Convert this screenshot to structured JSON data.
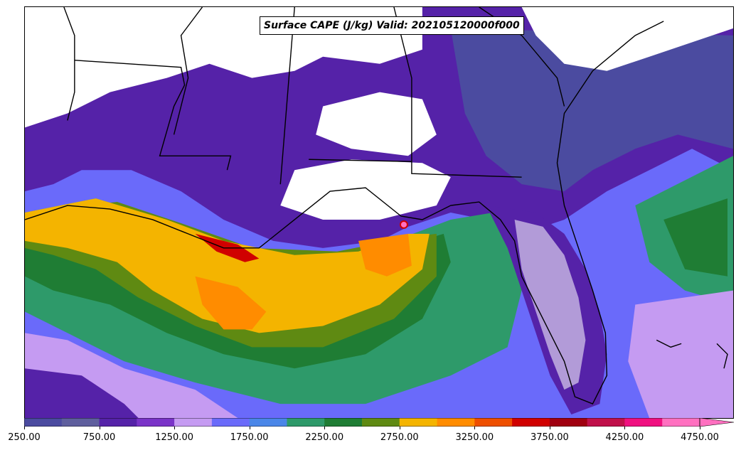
{
  "title": "Surface CAPE (J/kg) Valid: 202105120000f000",
  "colorbar": {
    "tick_labels": [
      "250.00",
      "750.00",
      "1250.00",
      "1750.00",
      "2250.00",
      "2750.00",
      "3250.00",
      "3750.00",
      "4250.00",
      "4750.00"
    ],
    "colors": [
      "#4b4ba0",
      "#5f5f9e",
      "#5522a8",
      "#7a33c8",
      "#c59bf2",
      "#6a6afa",
      "#4a86e8",
      "#2e9a6a",
      "#1f7d34",
      "#5f8a12",
      "#f4b400",
      "#ff8c00",
      "#ee4f00",
      "#d00000",
      "#a00010",
      "#c0104a",
      "#f01080",
      "#ff70c0"
    ],
    "extend": "max"
  },
  "legend_colors": {
    "land": "#ffffff",
    "border": "#000000"
  }
}
